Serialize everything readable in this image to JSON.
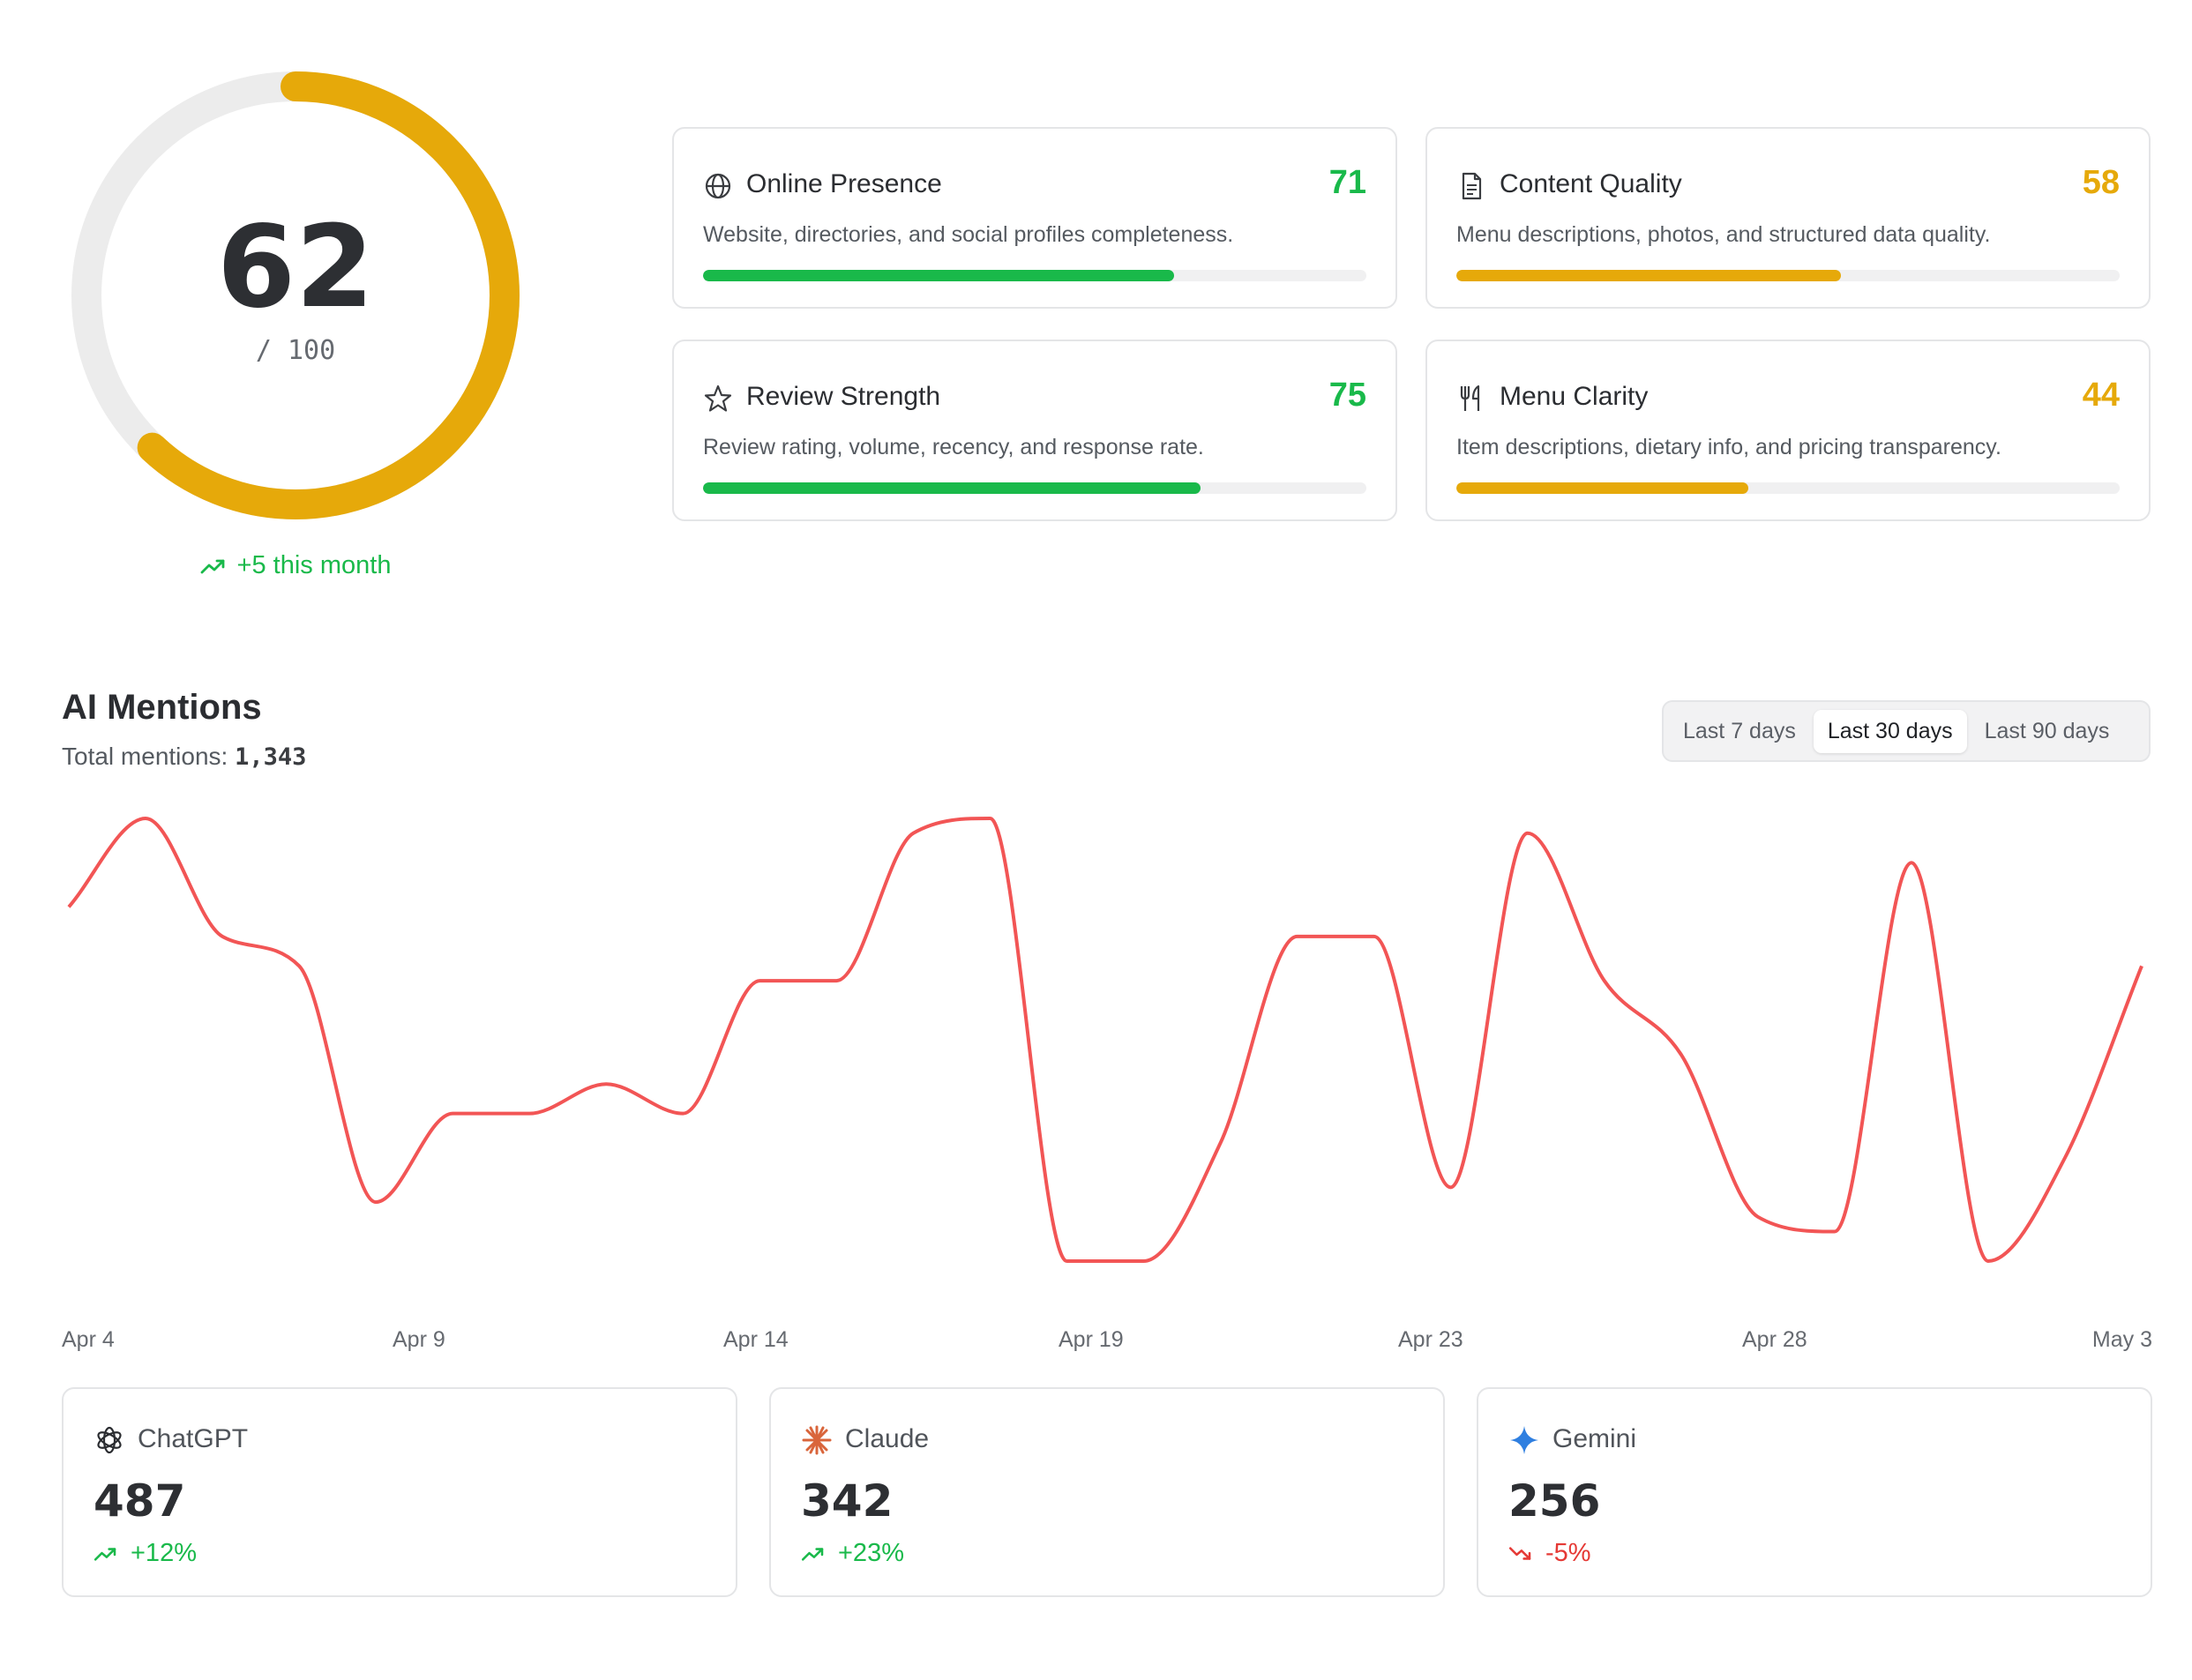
{
  "score": {
    "value": 62,
    "max": 100,
    "value_text": "62",
    "max_text": "/ 100",
    "trend_text": "+5 this month",
    "color": "#E6A90A"
  },
  "metrics": [
    {
      "title": "Online Presence",
      "score": 71,
      "score_text": "71",
      "description": "Website, directories, and social profiles completeness.",
      "color": "#19B94A",
      "icon": "globe-icon"
    },
    {
      "title": "Content Quality",
      "score": 58,
      "score_text": "58",
      "description": "Menu descriptions, photos, and structured data quality.",
      "color": "#E6A90A",
      "icon": "document-icon"
    },
    {
      "title": "Review Strength",
      "score": 75,
      "score_text": "75",
      "description": "Review rating, volume, recency, and response rate.",
      "color": "#19B94A",
      "icon": "star-icon"
    },
    {
      "title": "Menu Clarity",
      "score": 44,
      "score_text": "44",
      "description": "Item descriptions, dietary info, and pricing transparency.",
      "color": "#E6A90A",
      "icon": "utensils-icon"
    }
  ],
  "mentions": {
    "title": "AI Mentions",
    "total_label": "Total mentions:",
    "total_value": "1,343",
    "ranges": [
      "Last 7 days",
      "Last 30 days",
      "Last 90 days"
    ],
    "active_range": "Last 30 days"
  },
  "chart_data": {
    "type": "line",
    "line_color": "#F25555",
    "grid": false,
    "x_tick_labels": [
      "Apr 4",
      "Apr 9",
      "Apr 14",
      "Apr 19",
      "Apr 23",
      "Apr 28",
      "May 3"
    ],
    "series": [
      {
        "values": [
          55,
          61,
          53,
          51,
          35,
          41,
          41,
          43,
          41,
          50,
          50,
          60,
          61,
          31,
          31,
          39,
          53,
          53,
          36,
          60,
          50,
          45,
          34,
          33,
          58,
          31,
          38,
          51
        ]
      }
    ]
  },
  "providers": [
    {
      "name": "ChatGPT",
      "value_text": "487",
      "change": "+12%",
      "direction": "up",
      "color": "#19B94A",
      "icon": "chatgpt-icon"
    },
    {
      "name": "Claude",
      "value_text": "342",
      "change": "+23%",
      "direction": "up",
      "color": "#19B94A",
      "icon": "claude-icon"
    },
    {
      "name": "Gemini",
      "value_text": "256",
      "change": "-5%",
      "direction": "down",
      "color": "#E53935",
      "icon": "gemini-icon"
    }
  ]
}
